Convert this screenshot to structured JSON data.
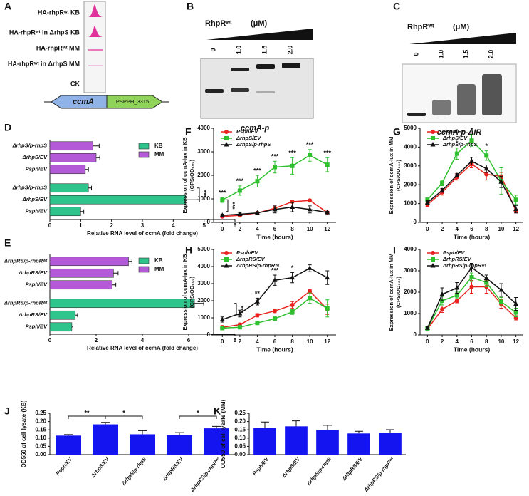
{
  "panel_a": {
    "label": "A",
    "rows": [
      "HA-rhpRʷᵗ KB",
      "HA-rhpRʷᵗ in ΔrhpS KB",
      "HA-rhpRʷᵗ MM",
      "HA-rhpRʷᵗ in ΔrhpS MM",
      "CK"
    ],
    "genes": [
      "ccmA",
      "PSPPH_3315"
    ]
  },
  "panel_b": {
    "label": "B",
    "protein": "RhpRʷᵗ",
    "unit": "(μM)",
    "lanes": [
      "0",
      "1.0",
      "1.5",
      "2.0"
    ],
    "caption": "ccmA-p"
  },
  "panel_c": {
    "label": "C",
    "protein": "RhpRʷᵗ",
    "unit": "(μM)",
    "lanes": [
      "0",
      "1.0",
      "1.5",
      "2.0"
    ],
    "caption": "ccmA-p-ΔIR"
  },
  "chart_data": [
    {
      "label": "D",
      "type": "hbar",
      "categories": [
        "Psph/EV",
        "ΔrhpS/EV",
        "ΔrhpS/p-rhpS"
      ],
      "series": [
        {
          "name": "KB",
          "color": "#2ec48c",
          "values": [
            1.0,
            4.4,
            1.25
          ],
          "errors": [
            0.1,
            0.45,
            0.1
          ]
        },
        {
          "name": "MM",
          "color": "#b45ad8",
          "values": [
            1.15,
            1.5,
            1.4
          ],
          "errors": [
            0.1,
            0.12,
            0.2
          ]
        }
      ],
      "xlim": [
        0,
        6
      ],
      "xticks": [
        0,
        1,
        2,
        3,
        4,
        5,
        6
      ],
      "xlabel": "Relative RNA level of ccmA (fold change)",
      "significance": [
        "***",
        "***"
      ]
    },
    {
      "label": "E",
      "type": "hbar",
      "categories": [
        "Psph/EV",
        "ΔrhpRS/EV",
        "ΔrhpRS/p-rhpRʷᵗ"
      ],
      "series": [
        {
          "name": "KB",
          "color": "#2ec48c",
          "values": [
            0.95,
            1.1,
            6.25
          ],
          "errors": [
            0.05,
            0.1,
            0.4
          ]
        },
        {
          "name": "MM",
          "color": "#b45ad8",
          "values": [
            2.7,
            2.75,
            3.4
          ],
          "errors": [
            0.15,
            0.2,
            0.15
          ]
        }
      ],
      "xlim": [
        0,
        8
      ],
      "xticks": [
        0,
        2,
        4,
        6,
        8
      ],
      "xlabel": "Relative RNA level of ccmA (fold change)",
      "significance": [
        "***"
      ]
    },
    {
      "label": "F",
      "type": "line",
      "x": [
        0,
        2,
        4,
        6,
        8,
        10,
        12
      ],
      "xlim": [
        -1,
        13
      ],
      "xticks": [
        0,
        2,
        4,
        6,
        8,
        10,
        12
      ],
      "ylim": [
        0,
        4000
      ],
      "yticks": [
        0,
        1000,
        2000,
        3000,
        4000
      ],
      "ylabel": [
        "Expression of ccmA-lux in KB",
        "(CPS/OD₆₀₀)"
      ],
      "xlabel": "Time (hours)",
      "series": [
        {
          "name": "Psph/EV",
          "color": "#e8231f",
          "marker": "circle",
          "values": [
            250,
            300,
            400,
            600,
            880,
            930,
            420
          ],
          "errors": [
            50,
            50,
            50,
            100,
            50,
            50,
            50
          ]
        },
        {
          "name": "ΔrhpS/EV",
          "color": "#2fbf2f",
          "marker": "square",
          "values": [
            950,
            1350,
            1750,
            2350,
            2400,
            2850,
            2450
          ],
          "errors": [
            100,
            200,
            250,
            250,
            350,
            250,
            300
          ]
        },
        {
          "name": "ΔrhpS/p-rhpS",
          "color": "#111111",
          "marker": "triangle",
          "values": [
            300,
            350,
            400,
            550,
            650,
            550,
            420
          ],
          "errors": [
            50,
            50,
            50,
            150,
            200,
            150,
            50
          ]
        }
      ],
      "significance": [
        "***",
        "***",
        "***",
        "***",
        "***",
        "***",
        "***"
      ]
    },
    {
      "label": "G",
      "type": "line",
      "x": [
        0,
        2,
        4,
        6,
        8,
        10,
        12
      ],
      "xlim": [
        -1,
        13
      ],
      "xticks": [
        0,
        2,
        4,
        6,
        8,
        10,
        12
      ],
      "ylim": [
        0,
        5000
      ],
      "yticks": [
        0,
        1000,
        2000,
        3000,
        4000,
        5000
      ],
      "ylabel": [
        "Expression of ccmA-lux in MM",
        "(CPS/OD₆₀₀)"
      ],
      "xlabel": "Time (hours)",
      "series": [
        {
          "name": "Psph/EV",
          "color": "#e8231f",
          "marker": "circle",
          "values": [
            950,
            1600,
            2400,
            3100,
            2550,
            2450,
            600
          ],
          "errors": [
            100,
            150,
            150,
            200,
            300,
            200,
            100
          ]
        },
        {
          "name": "ΔrhpS/EV",
          "color": "#2fbf2f",
          "marker": "square",
          "values": [
            1200,
            2100,
            3650,
            4350,
            3550,
            2200,
            1200
          ],
          "errors": [
            100,
            150,
            300,
            300,
            250,
            700,
            250
          ]
        },
        {
          "name": "ΔrhpS/p-rhpS",
          "color": "#111111",
          "marker": "triangle",
          "values": [
            1050,
            1700,
            2500,
            3250,
            2850,
            2150,
            700
          ],
          "errors": [
            100,
            100,
            100,
            200,
            200,
            300,
            200
          ]
        }
      ],
      "significance": [
        null,
        null,
        "*",
        "*",
        "*",
        null,
        null
      ]
    },
    {
      "label": "H",
      "type": "line",
      "x": [
        0,
        2,
        4,
        6,
        8,
        10,
        12
      ],
      "xlim": [
        -1,
        13
      ],
      "xticks": [
        0,
        2,
        4,
        6,
        8,
        10,
        12
      ],
      "ylim": [
        0,
        5000
      ],
      "yticks": [
        0,
        1000,
        2000,
        3000,
        4000,
        5000
      ],
      "ylabel": [
        "Expression of ccmA-lux in KB",
        "(CPS/OD₆₀₀)"
      ],
      "xlabel": "Time (hours)",
      "series": [
        {
          "name": "Psph/EV",
          "color": "#e8231f",
          "marker": "circle",
          "values": [
            450,
            600,
            1150,
            1400,
            1750,
            2550,
            1500
          ],
          "errors": [
            100,
            100,
            100,
            100,
            200,
            100,
            300
          ]
        },
        {
          "name": "ΔrhpRS/EV",
          "color": "#2fbf2f",
          "marker": "square",
          "values": [
            400,
            450,
            700,
            950,
            1350,
            2150,
            1550
          ],
          "errors": [
            100,
            100,
            100,
            100,
            150,
            300,
            500
          ]
        },
        {
          "name": "ΔrhpRS/p-rhpRʷᵗ",
          "color": "#111111",
          "marker": "triangle",
          "values": [
            900,
            1250,
            1950,
            3200,
            3350,
            3900,
            3350
          ],
          "errors": [
            150,
            200,
            200,
            300,
            300,
            200,
            400
          ]
        }
      ],
      "significance": [
        null,
        null,
        "**",
        "***",
        "*",
        null,
        null
      ]
    },
    {
      "label": "I",
      "type": "line",
      "x": [
        0,
        2,
        4,
        6,
        8,
        10,
        12
      ],
      "xlim": [
        -1,
        13
      ],
      "xticks": [
        0,
        2,
        4,
        6,
        8,
        10,
        12
      ],
      "ylim": [
        0,
        4000
      ],
      "yticks": [
        0,
        1000,
        2000,
        3000,
        4000
      ],
      "ylabel": [
        "Expression of ccmA-lux in MM",
        "(CPS/OD₆₀₀)"
      ],
      "xlabel": "Time (hours)",
      "series": [
        {
          "name": "Psph/EV",
          "color": "#e8231f",
          "marker": "circle",
          "values": [
            280,
            1200,
            1600,
            2250,
            2250,
            1450,
            800
          ],
          "errors": [
            50,
            150,
            100,
            300,
            300,
            200,
            100
          ]
        },
        {
          "name": "ΔrhpRS/EV",
          "color": "#2fbf2f",
          "marker": "square",
          "values": [
            300,
            1600,
            1850,
            2700,
            2450,
            1550,
            1050
          ],
          "errors": [
            50,
            200,
            150,
            200,
            200,
            200,
            200
          ]
        },
        {
          "name": "ΔrhpRS/p-rhpRʷᵗ",
          "color": "#111111",
          "marker": "triangle",
          "values": [
            320,
            1900,
            2200,
            3150,
            2650,
            2100,
            1450
          ],
          "errors": [
            50,
            300,
            250,
            200,
            150,
            300,
            300
          ]
        }
      ],
      "significance": [
        null,
        null,
        null,
        null,
        null,
        null,
        null
      ]
    },
    {
      "label": "J",
      "type": "bar",
      "categories": [
        "Psph/EV",
        "ΔrhpS/EV",
        "ΔrhpS/p-rhpS",
        "ΔrhpRS/EV",
        "ΔrhpRS/p-rhpRʷᵗ"
      ],
      "values": [
        0.115,
        0.183,
        0.123,
        0.118,
        0.159
      ],
      "errors": [
        0.006,
        0.012,
        0.022,
        0.015,
        0.012
      ],
      "color": "#1414f0",
      "ylim": [
        0,
        0.25
      ],
      "yticks": [
        {
          "value": 0,
          "label": "0.00"
        },
        {
          "value": 0.05,
          "label": "0.05"
        },
        {
          "value": 0.1,
          "label": "0.10"
        },
        {
          "value": 0.15,
          "label": "0.15"
        },
        {
          "value": 0.2,
          "label": "0.20"
        },
        {
          "value": 0.25,
          "label": "0.25"
        }
      ],
      "ylabel": "OD550 of cell lysate (KB)",
      "significance": [
        "**",
        "*",
        "*"
      ]
    },
    {
      "label": "K",
      "type": "bar",
      "categories": [
        "Psph/EV",
        "ΔrhpS/EV",
        "ΔrhpS/p-rhpS",
        "ΔrhpRS/EV",
        "ΔrhpRS/p-rhpRʷᵗ"
      ],
      "values": [
        0.162,
        0.171,
        0.15,
        0.128,
        0.131
      ],
      "errors": [
        0.035,
        0.033,
        0.027,
        0.013,
        0.02
      ],
      "color": "#1414f0",
      "ylim": [
        0,
        0.25
      ],
      "yticks": [
        {
          "value": 0,
          "label": "0.00"
        },
        {
          "value": 0.05,
          "label": "0.05"
        },
        {
          "value": 0.1,
          "label": "0.10"
        },
        {
          "value": 0.15,
          "label": "0.15"
        },
        {
          "value": 0.2,
          "label": "0.20"
        },
        {
          "value": 0.25,
          "label": "0.25"
        }
      ],
      "ylabel": "OD550 of cell lysate (MM)",
      "significance": []
    }
  ]
}
